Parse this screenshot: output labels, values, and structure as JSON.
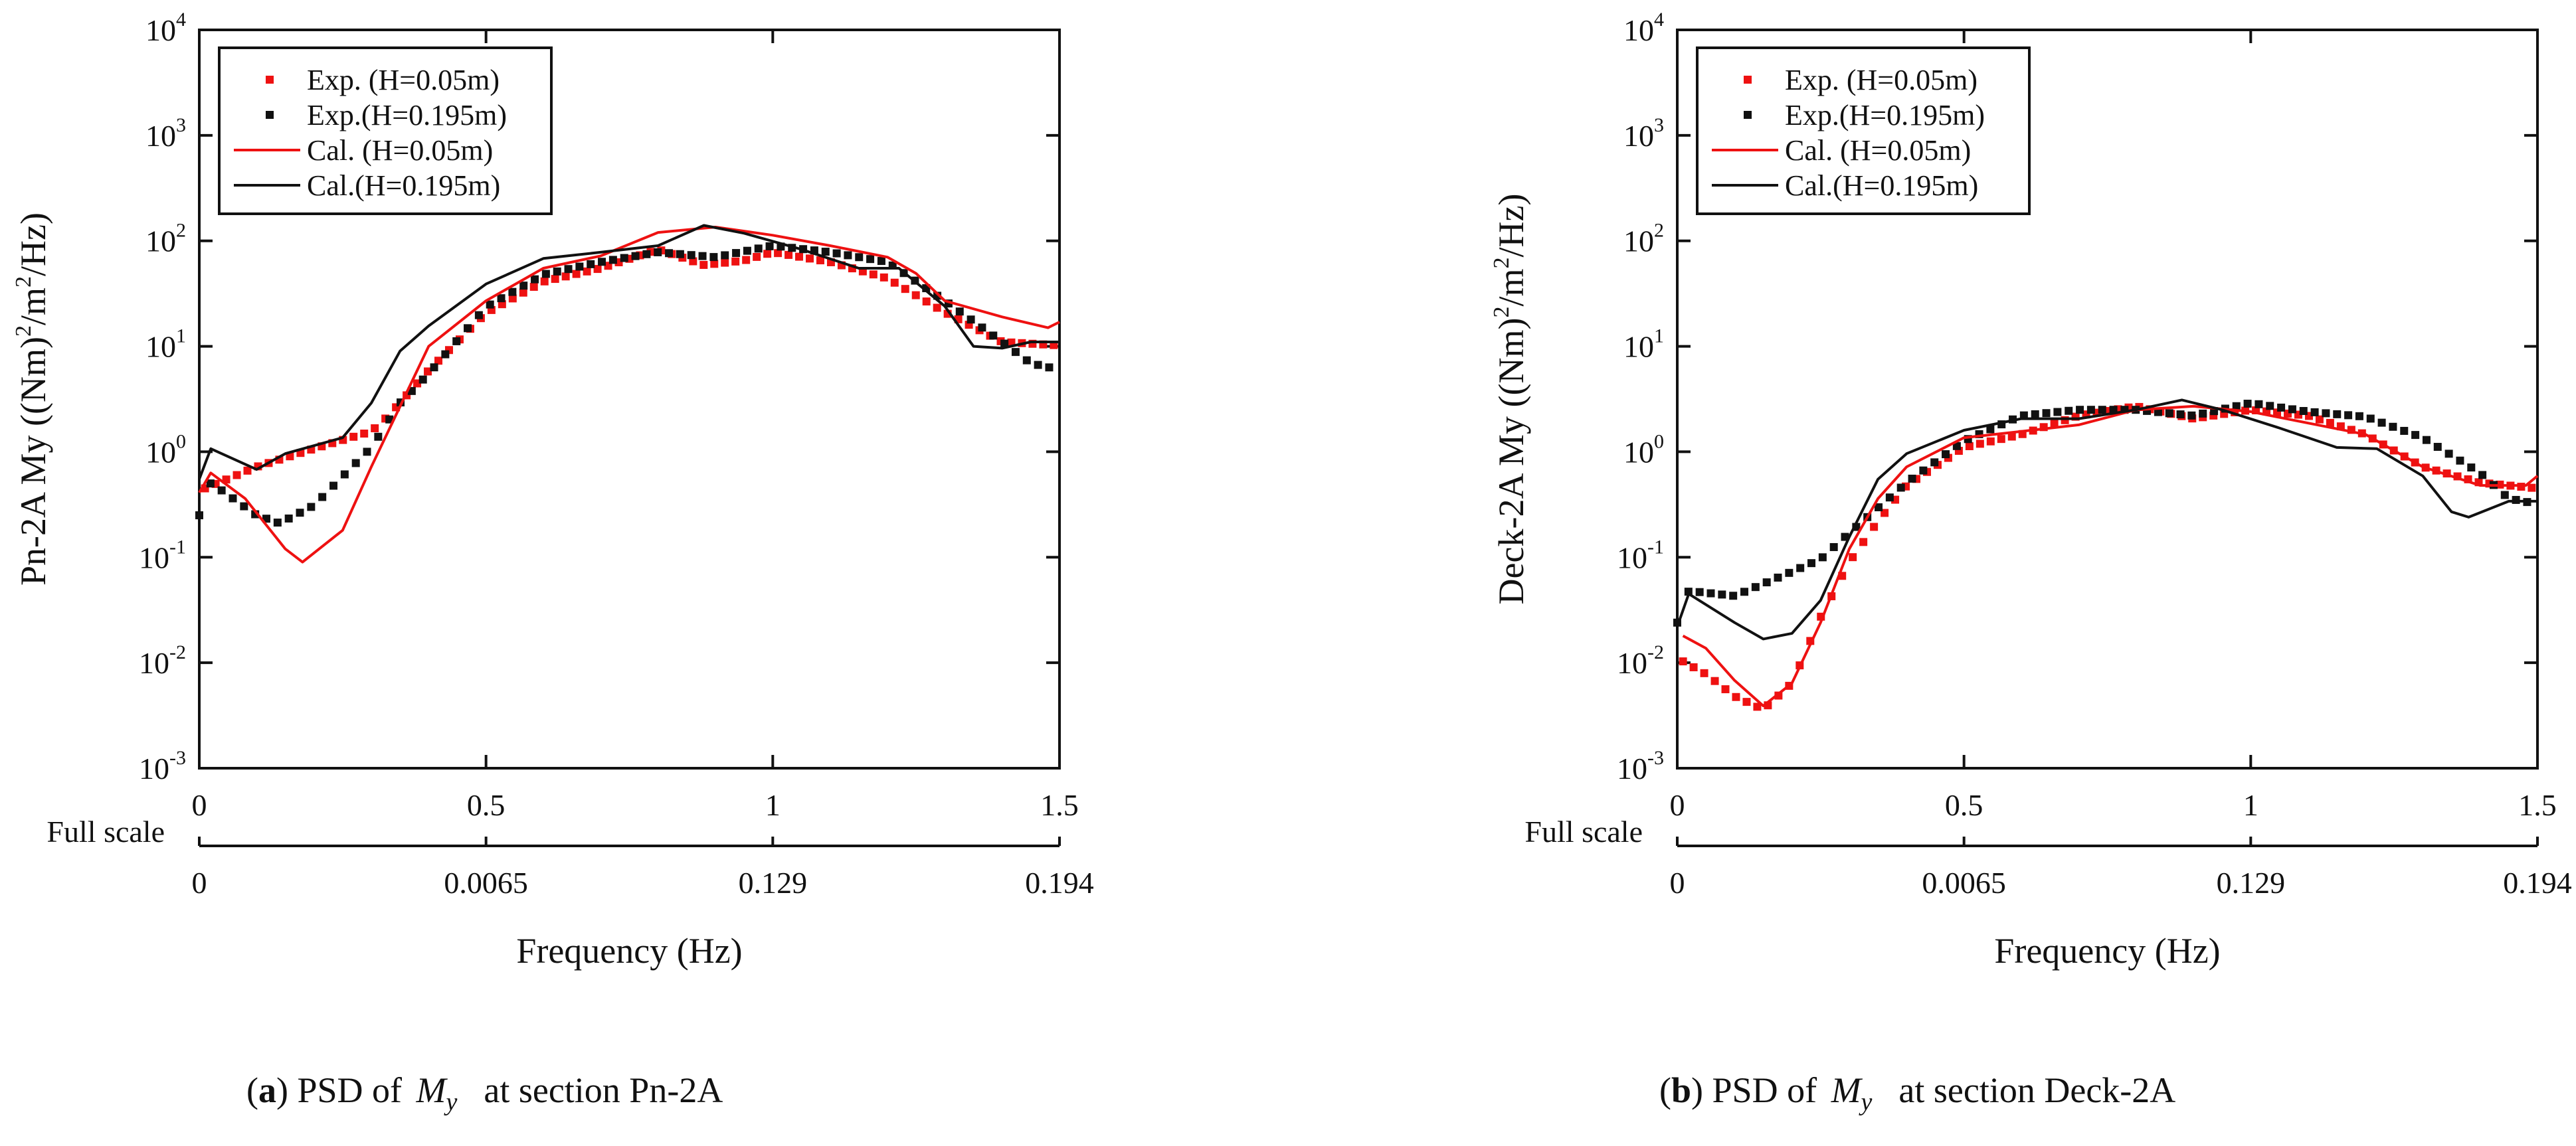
{
  "colors": {
    "exp_005": "#ee1111",
    "exp_0195": "#111111",
    "cal_005": "#ee1111",
    "cal_0195": "#111111"
  },
  "chart_data": [
    {
      "type": "line",
      "title": "",
      "xlabel": "Frequency (Hz)",
      "ylabel_parts": [
        "Pn-2A My ((Nm)",
        "2",
        "/m",
        "2",
        "/Hz)"
      ],
      "yscale": "log",
      "xlim": [
        0,
        1.5
      ],
      "ylim": [
        0.001,
        10000
      ],
      "grid": false,
      "x_ticks": [
        {
          "v": 0,
          "label": "0"
        },
        {
          "v": 0.5,
          "label": "0.5"
        },
        {
          "v": 1,
          "label": "1"
        },
        {
          "v": 1.5,
          "label": "1.5"
        }
      ],
      "secondary_axis": {
        "label": "Full scale",
        "ticks": [
          "0",
          "0.0065",
          "0.129",
          "0.194"
        ]
      },
      "y_ticks": [
        {
          "base": "10",
          "exp": "-3"
        },
        {
          "base": "10",
          "exp": "-2"
        },
        {
          "base": "10",
          "exp": "-1"
        },
        {
          "base": "10",
          "exp": "0"
        },
        {
          "base": "10",
          "exp": "1"
        },
        {
          "base": "10",
          "exp": "2"
        },
        {
          "base": "10",
          "exp": "3"
        },
        {
          "base": "10",
          "exp": "4"
        }
      ],
      "legend": {
        "placement": "top-left",
        "entries": [
          "Exp. (H=0.05m)",
          "Exp.(H=0.195m)",
          "Cal. (H=0.05m)",
          "Cal.(H=0.195m)"
        ]
      },
      "series": [
        {
          "name": "Exp. (H=0.05m)",
          "style": "dots",
          "color": "#ee1111",
          "x": [
            0.01,
            0.1,
            0.2,
            0.3,
            0.33,
            0.4,
            0.5,
            0.6,
            0.7,
            0.8,
            0.88,
            0.95,
            1.0,
            1.1,
            1.2,
            1.3,
            1.4,
            1.5
          ],
          "y": [
            0.45,
            0.72,
            1.07,
            1.56,
            2.2,
            5.9,
            20.7,
            41,
            55,
            83,
            59,
            65,
            78,
            63,
            44,
            21,
            11,
            10.2
          ]
        },
        {
          "name": "Exp.(H=0.195m)",
          "style": "dots",
          "color": "#111111",
          "x": [
            0,
            0.02,
            0.1,
            0.14,
            0.2,
            0.3,
            0.35,
            0.4,
            0.5,
            0.6,
            0.7,
            0.8,
            0.9,
            1.0,
            1.1,
            1.2,
            1.3,
            1.4,
            1.45,
            1.5
          ],
          "y": [
            0.25,
            0.51,
            0.25,
            0.21,
            0.31,
            1.1,
            2.9,
            5.5,
            23.7,
            48,
            63,
            78,
            70,
            90,
            78,
            63,
            27,
            11,
            6.9,
            6
          ]
        },
        {
          "name": "Cal. (H=0.05m)",
          "style": "line",
          "color": "#ee1111",
          "x": [
            0,
            0.02,
            0.08,
            0.15,
            0.18,
            0.25,
            0.3,
            0.4,
            0.5,
            0.6,
            0.7,
            0.8,
            0.9,
            1.0,
            1.1,
            1.2,
            1.25,
            1.3,
            1.4,
            1.48,
            1.5
          ],
          "y": [
            0.41,
            0.63,
            0.36,
            0.12,
            0.09,
            0.18,
            0.72,
            10,
            27,
            55,
            72,
            120,
            135,
            113,
            90,
            70,
            49,
            27,
            19,
            15,
            17
          ]
        },
        {
          "name": "Cal.(H=0.195m)",
          "style": "line",
          "color": "#111111",
          "x": [
            0,
            0.02,
            0.1,
            0.15,
            0.25,
            0.3,
            0.35,
            0.4,
            0.5,
            0.6,
            0.7,
            0.8,
            0.88,
            0.95,
            1.05,
            1.15,
            1.22,
            1.3,
            1.35,
            1.4,
            1.45,
            1.5
          ],
          "y": [
            0.55,
            1.07,
            0.68,
            0.96,
            1.36,
            2.9,
            9,
            15.6,
            39,
            68,
            78,
            90,
            140,
            118,
            83,
            55,
            55,
            24,
            10,
            9.6,
            11,
            11
          ]
        }
      ],
      "caption": {
        "open": "(",
        "letter": "a",
        "text1": ") PSD of ",
        "var": "M",
        "sub": "y",
        "text2": "at section Pn-2A"
      }
    },
    {
      "type": "line",
      "title": "",
      "xlabel": "Frequency (Hz)",
      "ylabel_parts": [
        "Deck-2A My ((Nm)",
        "2",
        "/m",
        "2",
        "/Hz)"
      ],
      "yscale": "log",
      "xlim": [
        0,
        1.5
      ],
      "ylim": [
        0.001,
        10000
      ],
      "grid": false,
      "x_ticks": [
        {
          "v": 0,
          "label": "0"
        },
        {
          "v": 0.5,
          "label": "0.5"
        },
        {
          "v": 1,
          "label": "1"
        },
        {
          "v": 1.5,
          "label": "1.5"
        }
      ],
      "secondary_axis": {
        "label": "Full scale",
        "ticks": [
          "0",
          "0.0065",
          "0.129",
          "0.194"
        ]
      },
      "y_ticks": [
        {
          "base": "10",
          "exp": "-3"
        },
        {
          "base": "10",
          "exp": "-2"
        },
        {
          "base": "10",
          "exp": "-1"
        },
        {
          "base": "10",
          "exp": "0"
        },
        {
          "base": "10",
          "exp": "1"
        },
        {
          "base": "10",
          "exp": "2"
        },
        {
          "base": "10",
          "exp": "3"
        },
        {
          "base": "10",
          "exp": "4"
        }
      ],
      "legend": {
        "placement": "top-left",
        "entries": [
          "Exp. (H=0.05m)",
          "Exp.(H=0.195m)",
          "Cal. (H=0.05m)",
          "Cal.(H=0.195m)"
        ]
      },
      "series": [
        {
          "name": "Exp. (H=0.05m)",
          "style": "dots",
          "color": "#ee1111",
          "x": [
            0.01,
            0.05,
            0.1,
            0.15,
            0.2,
            0.25,
            0.3,
            0.35,
            0.4,
            0.5,
            0.6,
            0.7,
            0.8,
            0.9,
            1.0,
            1.1,
            1.2,
            1.3,
            1.4,
            1.5
          ],
          "y": [
            0.0103,
            0.0078,
            0.0048,
            0.0036,
            0.0064,
            0.027,
            0.09,
            0.22,
            0.48,
            1.1,
            1.46,
            2.2,
            2.7,
            2.06,
            2.5,
            2.2,
            1.46,
            0.72,
            0.51,
            0.45
          ]
        },
        {
          "name": "Exp.(H=0.195m)",
          "style": "dots",
          "color": "#111111",
          "x": [
            0,
            0.02,
            0.1,
            0.2,
            0.25,
            0.3,
            0.4,
            0.5,
            0.6,
            0.7,
            0.8,
            0.9,
            1.0,
            1.1,
            1.2,
            1.3,
            1.4,
            1.45,
            1.5
          ],
          "y": [
            0.024,
            0.048,
            0.043,
            0.073,
            0.096,
            0.17,
            0.51,
            1.27,
            2.2,
            2.5,
            2.5,
            2.2,
            2.9,
            2.4,
            2.15,
            1.36,
            0.63,
            0.36,
            0.32
          ]
        },
        {
          "name": "Cal. (H=0.05m)",
          "style": "line",
          "color": "#ee1111",
          "x": [
            0.01,
            0.05,
            0.1,
            0.15,
            0.2,
            0.25,
            0.3,
            0.35,
            0.4,
            0.5,
            0.6,
            0.7,
            0.8,
            0.9,
            1.0,
            1.1,
            1.2,
            1.3,
            1.4,
            1.48,
            1.5
          ],
          "y": [
            0.018,
            0.0137,
            0.0068,
            0.0039,
            0.0064,
            0.024,
            0.12,
            0.36,
            0.72,
            1.36,
            1.56,
            1.8,
            2.5,
            2.7,
            2.4,
            1.87,
            1.46,
            0.72,
            0.48,
            0.48,
            0.59
          ]
        },
        {
          "name": "Cal.(H=0.195m)",
          "style": "line",
          "color": "#111111",
          "x": [
            0,
            0.02,
            0.1,
            0.15,
            0.2,
            0.25,
            0.3,
            0.35,
            0.4,
            0.5,
            0.6,
            0.7,
            0.8,
            0.88,
            0.95,
            1.05,
            1.15,
            1.22,
            1.3,
            1.35,
            1.38,
            1.45,
            1.5
          ],
          "y": [
            0.022,
            0.045,
            0.024,
            0.0168,
            0.019,
            0.039,
            0.156,
            0.55,
            0.96,
            1.6,
            2.06,
            2.06,
            2.5,
            3.1,
            2.5,
            1.68,
            1.1,
            1.07,
            0.59,
            0.27,
            0.24,
            0.34,
            0.34
          ]
        }
      ],
      "caption": {
        "open": "(",
        "letter": "b",
        "text1": ") PSD of ",
        "var": "M",
        "sub": "y",
        "text2": "at section Deck-2A"
      }
    }
  ]
}
